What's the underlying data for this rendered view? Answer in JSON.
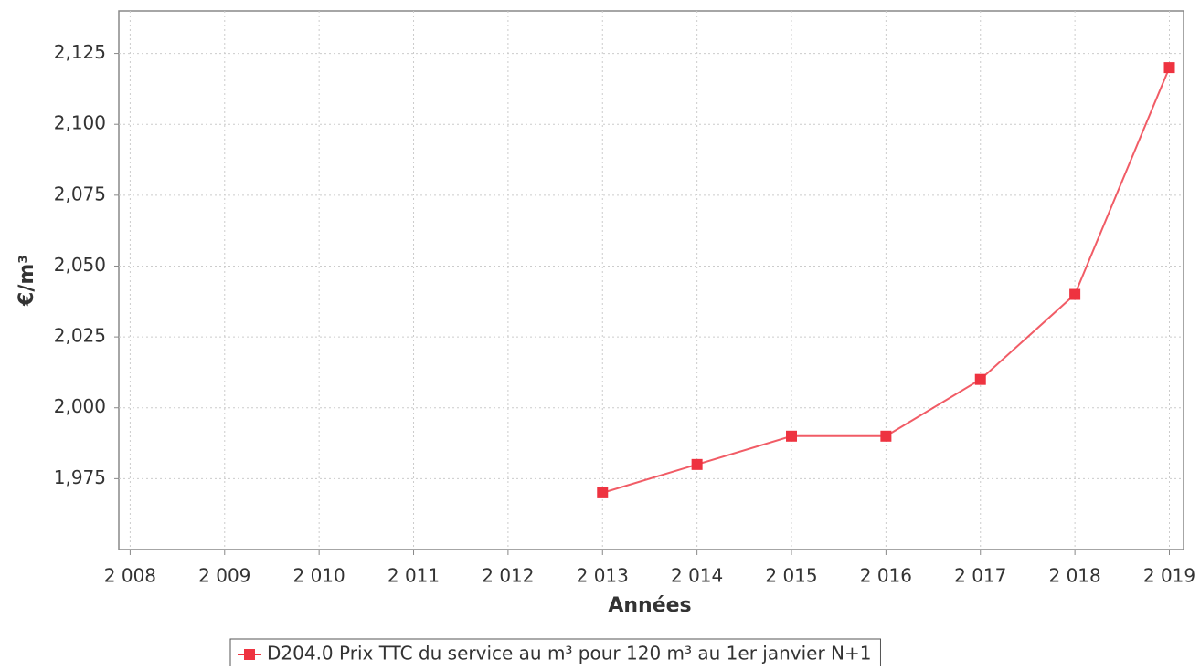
{
  "chart_data": {
    "type": "line",
    "x_label": "Années",
    "y_label": "€/m³",
    "x": [
      2013,
      2014,
      2015,
      2016,
      2017,
      2018,
      2019
    ],
    "series": [
      {
        "name": "D204.0 Prix TTC du service au m³ pour 120 m³ au 1er janvier N+1",
        "color": "#ee3340",
        "values": [
          1.97,
          1.98,
          1.99,
          1.99,
          2.01,
          2.04,
          2.12
        ]
      }
    ],
    "xlim": [
      2007.88,
      2019.15
    ],
    "xticks": [
      {
        "value": 2008,
        "label": "2 008"
      },
      {
        "value": 2009,
        "label": "2 009"
      },
      {
        "value": 2010,
        "label": "2 010"
      },
      {
        "value": 2011,
        "label": "2 011"
      },
      {
        "value": 2012,
        "label": "2 012"
      },
      {
        "value": 2013,
        "label": "2 013"
      },
      {
        "value": 2014,
        "label": "2 014"
      },
      {
        "value": 2015,
        "label": "2 015"
      },
      {
        "value": 2016,
        "label": "2 016"
      },
      {
        "value": 2017,
        "label": "2 017"
      },
      {
        "value": 2018,
        "label": "2 018"
      },
      {
        "value": 2019,
        "label": "2 019"
      }
    ],
    "ylim": [
      1.95,
      2.14
    ],
    "yticks": [
      {
        "value": 1.975,
        "label": "1,975"
      },
      {
        "value": 2.0,
        "label": "2,000"
      },
      {
        "value": 2.025,
        "label": "2,025"
      },
      {
        "value": 2.05,
        "label": "2,050"
      },
      {
        "value": 2.075,
        "label": "2,075"
      },
      {
        "value": 2.1,
        "label": "2,100"
      },
      {
        "value": 2.125,
        "label": "2,125"
      }
    ],
    "grid": true,
    "legend": "bottom"
  }
}
